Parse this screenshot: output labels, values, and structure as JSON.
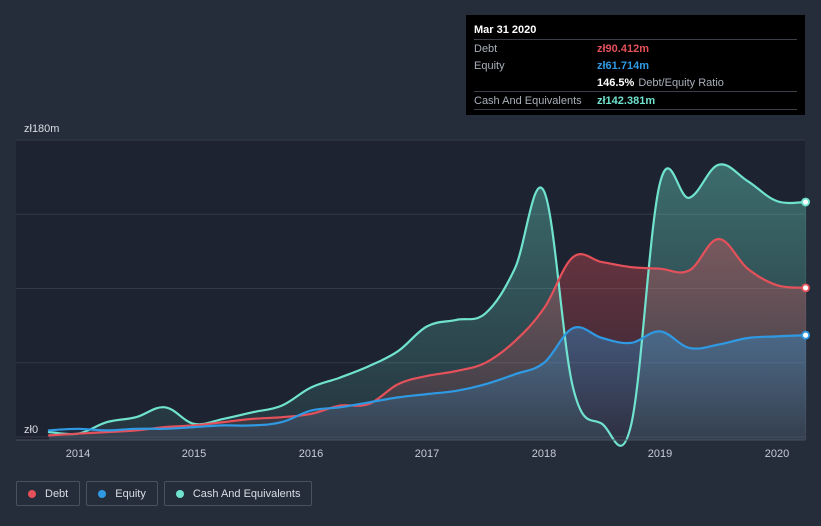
{
  "tooltip": {
    "date": "Mar 31 2020",
    "debt_label": "Debt",
    "debt_value": "zł90.412m",
    "equity_label": "Equity",
    "equity_value": "zł61.714m",
    "ratio_value": "146.5%",
    "ratio_label": "Debt/Equity Ratio",
    "cash_label": "Cash And Equivalents",
    "cash_value": "zł142.381m"
  },
  "legend": {
    "debt": "Debt",
    "equity": "Equity",
    "cash": "Cash And Equivalents"
  },
  "colors": {
    "background": "#262d3a",
    "debt": "#e4515a",
    "equity": "#2f9ae3",
    "cash": "#70e3cf"
  },
  "chart_data": {
    "type": "area",
    "title": "",
    "xlabel": "",
    "ylabel": "",
    "y_top_label": "zł180m",
    "y_bottom_label": "zł0",
    "ylim": [
      0,
      180
    ],
    "xlim": [
      2013.75,
      2020.25
    ],
    "grid": true,
    "legend_position": "bottom-left",
    "x_ticks": [
      "2014",
      "2015",
      "2016",
      "2017",
      "2018",
      "2019",
      "2020"
    ],
    "series": [
      {
        "name": "Cash And Equivalents",
        "key": "cash",
        "x": [
          2013.75,
          2014.0,
          2014.25,
          2014.5,
          2014.75,
          2015.0,
          2015.25,
          2015.5,
          2015.75,
          2016.0,
          2016.25,
          2016.5,
          2016.75,
          2017.0,
          2017.25,
          2017.5,
          2017.75,
          2018.0,
          2018.25,
          2018.5,
          2018.75,
          2019.0,
          2019.25,
          2019.5,
          2019.75,
          2020.0,
          2020.25
        ],
        "values": [
          3,
          2,
          9,
          12,
          18,
          8,
          11,
          15,
          19,
          30,
          36,
          43,
          52,
          67,
          71,
          75,
          102,
          149,
          30,
          8,
          7,
          154,
          145,
          165,
          155,
          143,
          142.4
        ]
      },
      {
        "name": "Debt",
        "key": "debt",
        "x": [
          2013.75,
          2014.0,
          2014.25,
          2014.5,
          2014.75,
          2015.0,
          2015.25,
          2015.5,
          2015.75,
          2016.0,
          2016.25,
          2016.5,
          2016.75,
          2017.0,
          2017.25,
          2017.5,
          2017.75,
          2018.0,
          2018.25,
          2018.5,
          2018.75,
          2019.0,
          2019.25,
          2019.5,
          2019.75,
          2020.0,
          2020.25
        ],
        "values": [
          1,
          2,
          3,
          4,
          6,
          7,
          9,
          11,
          12,
          14,
          19,
          20,
          32,
          37,
          40,
          45,
          58,
          78,
          109,
          106,
          103,
          102,
          101,
          120,
          102,
          92,
          90.4
        ]
      },
      {
        "name": "Equity",
        "key": "equity",
        "x": [
          2013.75,
          2014.0,
          2014.25,
          2014.5,
          2014.75,
          2015.0,
          2015.25,
          2015.5,
          2015.75,
          2016.0,
          2016.25,
          2016.5,
          2016.75,
          2017.0,
          2017.25,
          2017.5,
          2017.75,
          2018.0,
          2018.25,
          2018.5,
          2018.75,
          2019.0,
          2019.25,
          2019.5,
          2019.75,
          2020.0,
          2020.25
        ],
        "values": [
          4,
          5,
          4,
          5,
          5,
          6,
          7,
          7,
          9,
          16,
          18,
          21,
          24,
          26,
          28,
          32,
          38,
          45,
          66,
          60,
          57,
          64,
          54,
          56,
          60,
          61,
          61.7
        ]
      }
    ]
  }
}
